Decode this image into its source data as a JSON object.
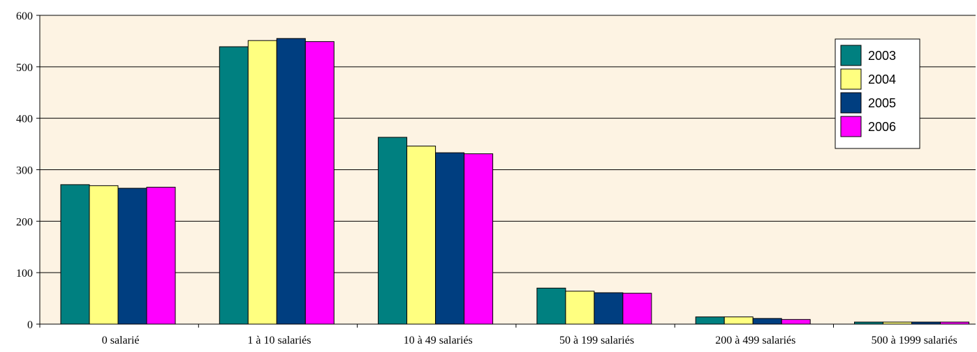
{
  "chart_data": {
    "type": "bar",
    "title": "",
    "xlabel": "",
    "ylabel": "",
    "categories": [
      "0 salarié",
      "1 à 10 salariés",
      "10 à 49 salariés",
      "50 à 199 salariés",
      "200 à 499 salariés",
      "500 à 1999 salariés"
    ],
    "series": [
      {
        "name": "2003",
        "color": "#008080",
        "values": [
          271,
          539,
          363,
          70,
          14,
          4
        ]
      },
      {
        "name": "2004",
        "color": "#FFFF80",
        "values": [
          269,
          551,
          346,
          64,
          14,
          4
        ]
      },
      {
        "name": "2005",
        "color": "#003E80",
        "values": [
          264,
          555,
          333,
          61,
          11,
          4
        ]
      },
      {
        "name": "2006",
        "color": "#FF00FF",
        "values": [
          266,
          549,
          331,
          60,
          9,
          4
        ]
      }
    ],
    "ylim": [
      0,
      600
    ],
    "yticks": [
      0,
      100,
      200,
      300,
      400,
      500,
      600
    ],
    "grid": true,
    "legend_position": "top-right",
    "plot_background": "#FDF3E3"
  }
}
